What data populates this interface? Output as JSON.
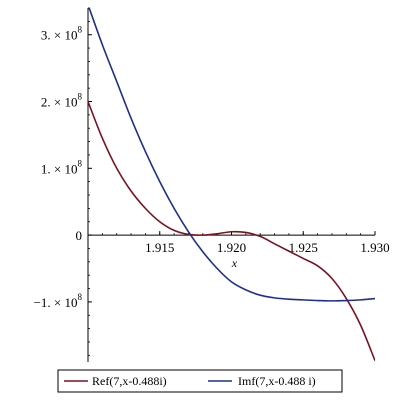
{
  "chart_data": {
    "type": "line",
    "title": "",
    "xlabel": "x",
    "ylabel": "",
    "xlim": [
      1.91,
      1.93
    ],
    "ylim": [
      -190000000.0,
      340000000.0
    ],
    "grid": false,
    "legend_position": "bottom",
    "x_ticks": [
      {
        "value": 1.915,
        "label": "1.915"
      },
      {
        "value": 1.92,
        "label": "1.920"
      },
      {
        "value": 1.925,
        "label": "1.925"
      },
      {
        "value": 1.93,
        "label": "1.930"
      }
    ],
    "y_ticks": [
      {
        "value": 300000000.0,
        "mant": "3. × 10",
        "exp": "8"
      },
      {
        "value": 200000000.0,
        "mant": "2. × 10",
        "exp": "8"
      },
      {
        "value": 100000000.0,
        "mant": "1. × 10",
        "exp": "8"
      },
      {
        "value": 0,
        "mant": "0",
        "exp": ""
      },
      {
        "value": -100000000.0,
        "mant": "−1. × 10",
        "exp": "8"
      }
    ],
    "series": [
      {
        "name": "Ref(7,x-0.488i)",
        "color": "#7a1320",
        "x": [
          1.91,
          1.911,
          1.912,
          1.913,
          1.914,
          1.915,
          1.916,
          1.917,
          1.918,
          1.919,
          1.92,
          1.921,
          1.922,
          1.923,
          1.924,
          1.925,
          1.926,
          1.927,
          1.928,
          1.929,
          1.93
        ],
        "values": [
          200000000.0,
          145000000.0,
          100000000.0,
          66000000.0,
          40000000.0,
          20000000.0,
          7000000.0,
          1000000.0,
          0.0,
          2000000.0,
          5000000.0,
          4000000.0,
          -2000000.0,
          -13000000.0,
          -24000000.0,
          -35000000.0,
          -46000000.0,
          -65000000.0,
          -95000000.0,
          -135000000.0,
          -188000000.0
        ]
      },
      {
        "name": "Imf(7,x-0.488 i)",
        "color": "#1f2f8c",
        "x": [
          1.91,
          1.911,
          1.912,
          1.913,
          1.914,
          1.915,
          1.916,
          1.917,
          1.918,
          1.919,
          1.92,
          1.921,
          1.922,
          1.923,
          1.924,
          1.925,
          1.926,
          1.927,
          1.928,
          1.929,
          1.93
        ],
        "values": [
          345000000.0,
          285000000.0,
          230000000.0,
          175000000.0,
          125000000.0,
          80000000.0,
          40000000.0,
          5000000.0,
          -25000000.0,
          -50000000.0,
          -70000000.0,
          -82000000.0,
          -90000000.0,
          -94000000.0,
          -96000000.0,
          -97000000.0,
          -98000000.0,
          -98500000.0,
          -98000000.0,
          -97000000.0,
          -95000000.0
        ]
      }
    ]
  }
}
